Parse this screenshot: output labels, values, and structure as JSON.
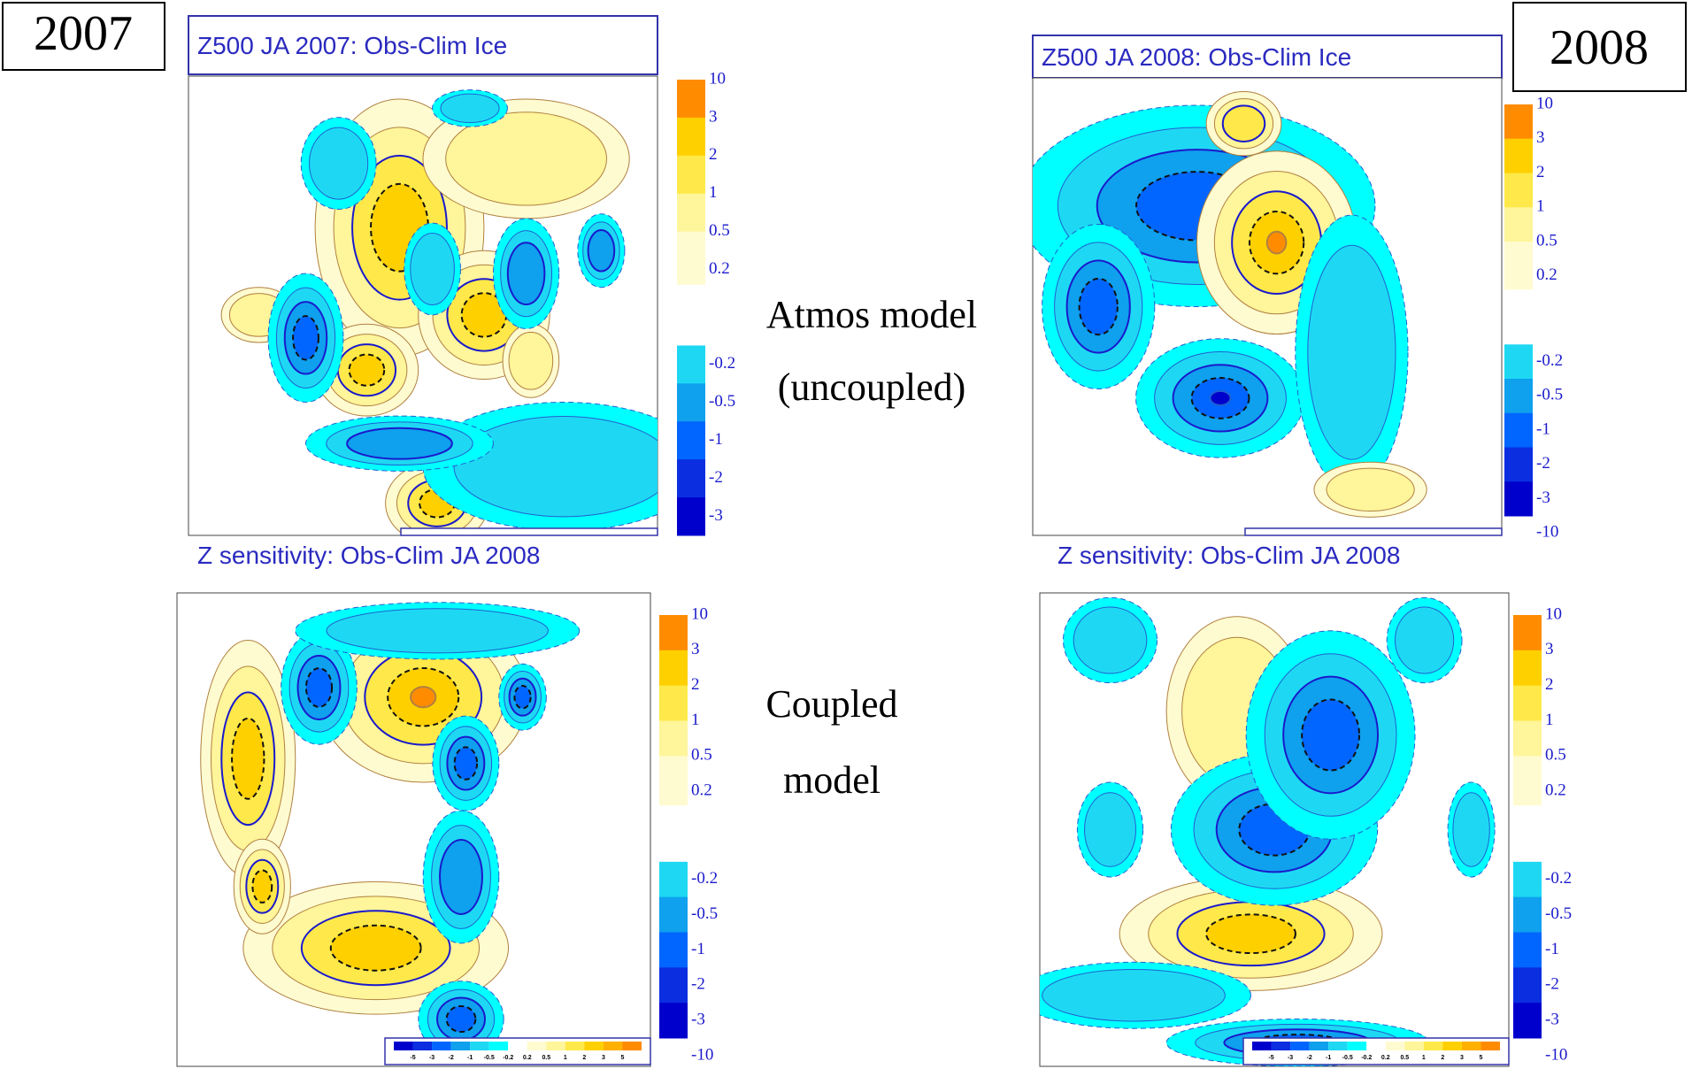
{
  "years": [
    "2007",
    "2008"
  ],
  "row_labels": [
    [
      "Atmos model",
      "(uncoupled)"
    ],
    [
      "Coupled",
      "model"
    ]
  ],
  "panels": [
    {
      "title": "Z500 JA 2007: Obs-Clim Ice",
      "colorbar": [
        10,
        3,
        2,
        1,
        0.5,
        0.2,
        -0.2,
        -0.5,
        -1,
        -2,
        -3
      ]
    },
    {
      "title": "Z500 JA 2008: Obs-Clim Ice",
      "colorbar": [
        10,
        3,
        2,
        1,
        0.5,
        0.2,
        -0.2,
        -0.5,
        -1,
        -2,
        -3,
        -10
      ]
    },
    {
      "title": "Z sensitivity: Obs-Clim  JA 2008",
      "colorbar": [
        10,
        3,
        2,
        1,
        0.5,
        0.2,
        -0.2,
        -0.5,
        -1,
        -2,
        -3,
        -10
      ],
      "legend": [
        -5,
        -3,
        -2,
        -1,
        -0.5,
        -0.2,
        0.2,
        0.5,
        1,
        2,
        3,
        5
      ]
    },
    {
      "title": "Z sensitivity: Obs-Clim  JA 2008",
      "colorbar": [
        10,
        3,
        2,
        1,
        0.5,
        0.2,
        -0.2,
        -0.5,
        -1,
        -2,
        -3,
        -10
      ],
      "legend": [
        -5,
        -3,
        -2,
        -1,
        -0.5,
        -0.2,
        0.2,
        0.5,
        1,
        2,
        3,
        5
      ]
    }
  ]
}
